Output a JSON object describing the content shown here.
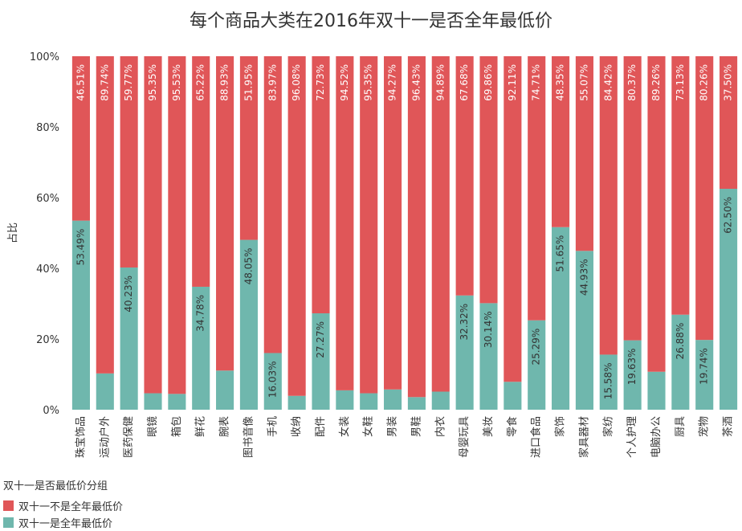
{
  "chart_data": {
    "type": "bar",
    "stacked": true,
    "title": "每个商品大类在2016年双十一是否全年最低价",
    "ylabel": "占比",
    "xlabel": "",
    "ylim": [
      0,
      100
    ],
    "yticks": [
      "0%",
      "20%",
      "40%",
      "60%",
      "80%",
      "100%"
    ],
    "ytick_values": [
      0,
      20,
      40,
      60,
      80,
      100
    ],
    "categories": [
      "珠宝饰品",
      "运动户外",
      "医药保健",
      "眼镜",
      "箱包",
      "鲜花",
      "腕表",
      "图书音像",
      "手机",
      "收纳",
      "配件",
      "女装",
      "女鞋",
      "男装",
      "男鞋",
      "内衣",
      "母婴玩具",
      "美妆",
      "零食",
      "进口食品",
      "家饰",
      "家具器材",
      "家纺",
      "个人护理",
      "电脑办公",
      "厨具",
      "宠物",
      "茶酒"
    ],
    "legend_title": "双十一是否最低价分组",
    "series": [
      {
        "name": "双十一不是全年最低价",
        "color": "#e05658",
        "values": [
          46.51,
          89.74,
          59.77,
          95.35,
          95.53,
          65.22,
          88.93,
          51.95,
          83.97,
          96.08,
          72.73,
          94.52,
          95.35,
          94.27,
          96.43,
          94.89,
          67.68,
          69.86,
          92.11,
          74.71,
          48.35,
          55.07,
          84.42,
          80.37,
          89.26,
          73.13,
          80.26,
          37.5
        ],
        "labels": [
          "46.51%",
          "89.74%",
          "59.77%",
          "95.35%",
          "95.53%",
          "65.22%",
          "88.93%",
          "51.95%",
          "83.97%",
          "96.08%",
          "72.73%",
          "94.52%",
          "95.35%",
          "94.27%",
          "96.43%",
          "94.89%",
          "67.68%",
          "69.86%",
          "92.11%",
          "74.71%",
          "48.35%",
          "55.07%",
          "84.42%",
          "80.37%",
          "89.26%",
          "73.13%",
          "80.26%",
          "37.50%"
        ]
      },
      {
        "name": "双十一是全年最低价",
        "color": "#6fb7ad",
        "values": [
          53.49,
          10.26,
          40.23,
          4.65,
          4.47,
          34.78,
          11.07,
          48.05,
          16.03,
          3.92,
          27.27,
          5.48,
          4.65,
          5.73,
          3.57,
          5.11,
          32.32,
          30.14,
          7.89,
          25.29,
          51.65,
          44.93,
          15.58,
          19.63,
          10.74,
          26.88,
          19.74,
          62.5
        ],
        "labels": [
          "53.49%",
          "",
          "40.23%",
          "",
          "",
          "34.78%",
          "",
          "48.05%",
          "16.03%",
          "",
          "27.27%",
          "",
          "",
          "",
          "",
          "",
          "32.32%",
          "30.14%",
          "",
          "25.29%",
          "51.65%",
          "44.93%",
          "15.58%",
          "19.63%",
          "",
          "26.88%",
          "19.74%",
          "62.50%"
        ]
      }
    ]
  }
}
